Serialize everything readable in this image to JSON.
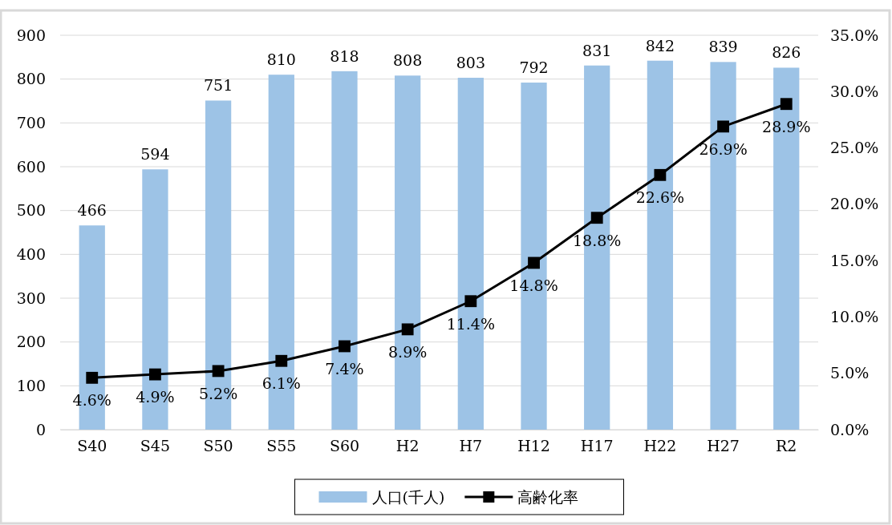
{
  "chart_data": {
    "type": "bar",
    "categories": [
      "S40",
      "S45",
      "S50",
      "S55",
      "S60",
      "H2",
      "H7",
      "H12",
      "H17",
      "H22",
      "H27",
      "R2"
    ],
    "series": [
      {
        "name": "人口(千人)",
        "color": "#9dc3e6",
        "values": [
          466,
          594,
          751,
          810,
          818,
          808,
          803,
          792,
          831,
          842,
          839,
          826
        ]
      },
      {
        "name": "高齢化率",
        "type": "line",
        "axis": "y2",
        "color": "#000000",
        "marker": "square",
        "values": [
          4.6,
          4.9,
          5.2,
          6.1,
          7.4,
          8.9,
          11.4,
          14.8,
          18.8,
          22.6,
          26.9,
          28.9
        ],
        "value_labels": [
          "4.6%",
          "4.9%",
          "5.2%",
          "6.1%",
          "7.4%",
          "8.9%",
          "11.4%",
          "14.8%",
          "18.8%",
          "22.6%",
          "26.9%",
          "28.9%"
        ]
      }
    ],
    "data_labels": true,
    "ylim": [
      0,
      900
    ],
    "yticks": [
      0,
      100,
      200,
      300,
      400,
      500,
      600,
      700,
      800,
      900
    ],
    "y2lim": [
      0,
      35
    ],
    "y2ticks": [
      {
        "value": 0,
        "label": "0.0%"
      },
      {
        "value": 5,
        "label": "5.0%"
      },
      {
        "value": 10,
        "label": "10.0%"
      },
      {
        "value": 15,
        "label": "15.0%"
      },
      {
        "value": 20,
        "label": "20.0%"
      },
      {
        "value": 25,
        "label": "25.0%"
      },
      {
        "value": 30,
        "label": "30.0%"
      },
      {
        "value": 35,
        "label": "35.0%"
      }
    ],
    "grid": "y",
    "legend": "bottom"
  }
}
